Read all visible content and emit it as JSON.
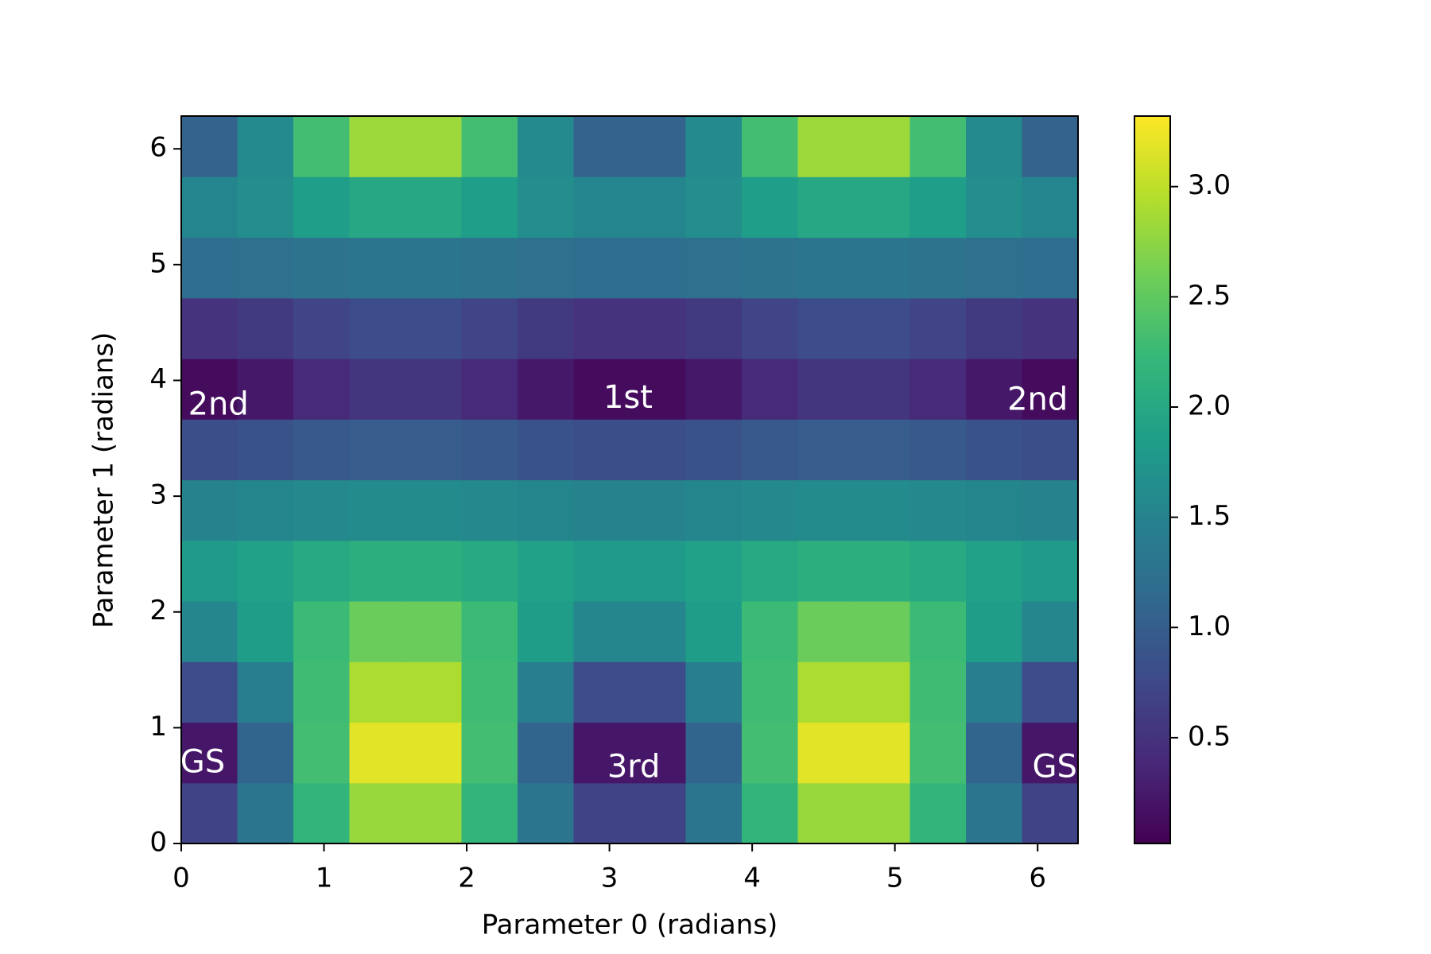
{
  "chart_data": {
    "type": "heatmap",
    "xlabel": "Parameter 0 (radians)",
    "ylabel": "Parameter 1 (radians)",
    "xlim": [
      0,
      6.283
    ],
    "ylim": [
      0,
      6.283
    ],
    "xticks": [
      0,
      1,
      2,
      3,
      4,
      5,
      6
    ],
    "yticks": [
      0,
      1,
      2,
      3,
      4,
      5,
      6
    ],
    "colormap": "viridis",
    "values": [
      [
        0.69,
        1.31,
        2.19,
        2.81,
        2.81,
        2.19,
        1.31,
        0.69,
        0.69,
        1.31,
        2.19,
        2.81,
        2.81,
        2.19,
        1.31,
        0.69
      ],
      [
        0.22,
        1.09,
        2.31,
        3.18,
        3.18,
        2.31,
        1.09,
        0.22,
        0.22,
        1.09,
        2.31,
        3.18,
        3.18,
        2.31,
        1.09,
        0.22
      ],
      [
        0.79,
        1.41,
        2.29,
        2.91,
        2.91,
        2.29,
        1.41,
        0.79,
        0.79,
        1.41,
        2.29,
        2.91,
        2.91,
        2.29,
        1.41,
        0.79
      ],
      [
        1.54,
        1.84,
        2.26,
        2.56,
        2.56,
        2.26,
        1.84,
        1.54,
        1.54,
        1.84,
        2.26,
        2.56,
        2.56,
        2.26,
        1.84,
        1.54
      ],
      [
        1.81,
        1.89,
        2.01,
        2.09,
        2.09,
        2.01,
        1.89,
        1.81,
        1.81,
        1.89,
        2.01,
        2.09,
        2.09,
        2.01,
        1.89,
        1.81
      ],
      [
        1.5,
        1.53,
        1.57,
        1.6,
        1.6,
        1.57,
        1.53,
        1.5,
        1.5,
        1.53,
        1.57,
        1.6,
        1.6,
        1.57,
        1.53,
        1.5
      ],
      [
        0.81,
        0.86,
        0.94,
        0.99,
        0.99,
        0.94,
        0.86,
        0.81,
        0.81,
        0.86,
        0.94,
        0.99,
        0.99,
        0.94,
        0.86,
        0.81
      ],
      [
        0.12,
        0.24,
        0.41,
        0.53,
        0.53,
        0.41,
        0.24,
        0.12,
        0.12,
        0.24,
        0.41,
        0.53,
        0.53,
        0.41,
        0.24,
        0.12
      ],
      [
        0.51,
        0.59,
        0.71,
        0.79,
        0.79,
        0.71,
        0.59,
        0.51,
        0.51,
        0.59,
        0.71,
        0.79,
        0.79,
        0.71,
        0.59,
        0.51
      ],
      [
        1.2,
        1.23,
        1.27,
        1.3,
        1.3,
        1.27,
        1.23,
        1.2,
        1.2,
        1.23,
        1.27,
        1.3,
        1.3,
        1.27,
        1.23,
        1.2
      ],
      [
        1.52,
        1.65,
        1.85,
        1.98,
        1.98,
        1.85,
        1.65,
        1.52,
        1.52,
        1.65,
        1.85,
        1.98,
        1.98,
        1.85,
        1.65,
        1.52
      ],
      [
        1.07,
        1.59,
        2.31,
        2.83,
        2.83,
        2.31,
        1.59,
        1.07,
        1.07,
        1.59,
        2.31,
        2.83,
        2.83,
        2.31,
        1.59,
        1.07
      ]
    ],
    "colorbar": {
      "lim": [
        0.02,
        3.32
      ],
      "ticks": [
        0.5,
        {
          "value": 1,
          "label": "1.0"
        },
        1.5,
        {
          "value": 2,
          "label": "2.0"
        },
        2.5,
        {
          "value": 3,
          "label": "3.0"
        }
      ]
    },
    "annotations": [
      {
        "text": "GS",
        "x": 0.15,
        "y": 0.69
      },
      {
        "text": "2nd",
        "x": 0.26,
        "y": 3.78
      },
      {
        "text": "1st",
        "x": 3.13,
        "y": 3.84
      },
      {
        "text": "2nd",
        "x": 6.0,
        "y": 3.82
      },
      {
        "text": "3rd",
        "x": 3.17,
        "y": 0.65
      },
      {
        "text": "GS",
        "x": 6.12,
        "y": 0.65
      }
    ]
  }
}
